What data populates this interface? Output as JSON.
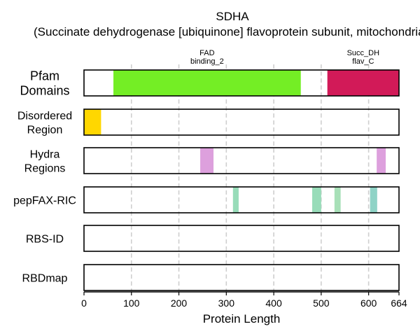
{
  "chart_data": {
    "type": "bar",
    "title": "SDHA",
    "subtitle": "(Succinate dehydrogenase [ubiquinone] flavoprotein subunit, mitochondrial)",
    "xlabel": "Protein Length",
    "xlim": [
      0,
      664
    ],
    "xticks": [
      0,
      100,
      200,
      300,
      400,
      500,
      600,
      664
    ],
    "grid_x": [
      100,
      200,
      300,
      400,
      500,
      600
    ],
    "grid": true,
    "tracks": [
      {
        "label": "Pfam\nDomains",
        "segments": [
          {
            "start": 62,
            "end": 457,
            "color": "#74ee25",
            "label": "FAD\nbinding_2"
          },
          {
            "start": 513,
            "end": 664,
            "color": "#d21a58",
            "label": "Succ_DH\nflav_C"
          }
        ]
      },
      {
        "label": "Disordered\nRegion",
        "segments": [
          {
            "start": 0,
            "end": 36,
            "color": "#ffd700"
          }
        ]
      },
      {
        "label": "Hydra\nRegions",
        "segments": [
          {
            "start": 245,
            "end": 273,
            "color": "#dda0dd"
          },
          {
            "start": 617,
            "end": 636,
            "color": "#dda0dd"
          }
        ]
      },
      {
        "label": "pepFAX-RIC",
        "segments": [
          {
            "start": 314,
            "end": 326,
            "color": "#98dcb9"
          },
          {
            "start": 481,
            "end": 500,
            "color": "#98dcb9"
          },
          {
            "start": 528,
            "end": 541,
            "color": "#a8e0b8"
          },
          {
            "start": 603,
            "end": 618,
            "color": "#8fd3c6"
          }
        ]
      },
      {
        "label": "RBS-ID",
        "segments": []
      },
      {
        "label": "RBDmap",
        "segments": []
      }
    ]
  }
}
